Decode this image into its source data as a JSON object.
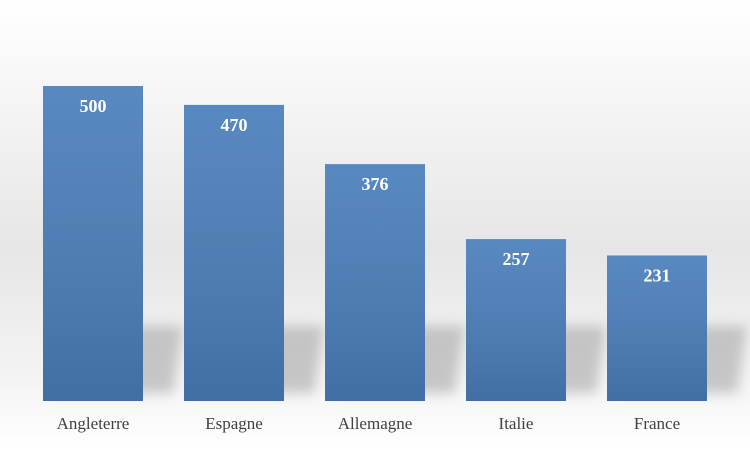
{
  "chart_data": {
    "type": "bar",
    "categories": [
      "Angleterre",
      "Espagne",
      "Allemagne",
      "Italie",
      "France"
    ],
    "values": [
      500,
      470,
      376,
      257,
      231
    ],
    "color": "#4a7ebb"
  }
}
